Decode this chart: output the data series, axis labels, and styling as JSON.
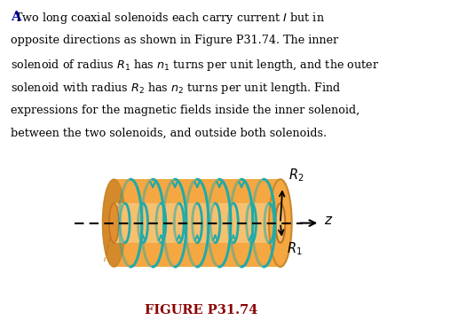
{
  "title_letter": "A",
  "line1": " Two long coaxial solenoids each carry current $I$ but in",
  "line2": "opposite directions as shown in Figure P31.74. The inner",
  "line3": "solenoid of radius $R_1$ has $n_1$ turns per unit length, and the outer",
  "line4": "solenoid with radius $R_2$ has $n_2$ turns per unit length. Find",
  "line5": "expressions for the magnetic fields inside the inner solenoid,",
  "line6": "between the two solenoids, and outside both solenoids.",
  "figure_caption": "FIGURE P31.74",
  "outer_color": "#F5A742",
  "outer_color_dark": "#D4892A",
  "outer_color_edge": "#C8882A",
  "inner_color": "#F5C070",
  "coil_color": "#20AAAA",
  "caption_color": "#8B0000",
  "background_color": "#ffffff"
}
